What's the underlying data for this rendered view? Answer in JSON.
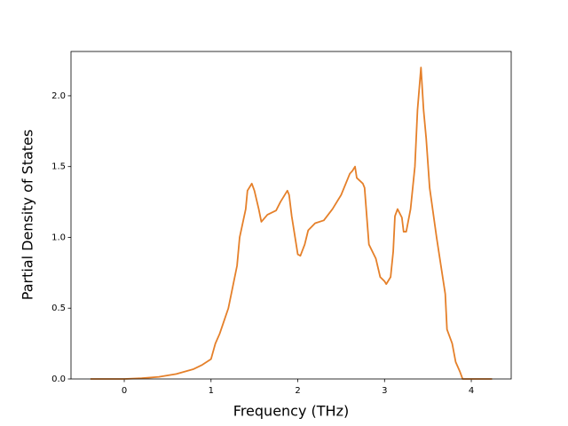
{
  "chart_data": {
    "type": "line",
    "xlabel": "Frequency (THz)",
    "ylabel": "Partial Density of States",
    "x": [
      -0.39,
      0.0,
      0.2,
      0.4,
      0.6,
      0.8,
      0.9,
      1.0,
      1.05,
      1.1,
      1.2,
      1.25,
      1.3,
      1.33,
      1.4,
      1.42,
      1.47,
      1.5,
      1.55,
      1.58,
      1.65,
      1.75,
      1.8,
      1.88,
      1.9,
      1.93,
      2.0,
      2.03,
      2.08,
      2.12,
      2.2,
      2.3,
      2.4,
      2.5,
      2.6,
      2.63,
      2.66,
      2.68,
      2.75,
      2.77,
      2.82,
      2.9,
      2.95,
      3.0,
      3.02,
      3.07,
      3.1,
      3.12,
      3.15,
      3.2,
      3.22,
      3.25,
      3.3,
      3.35,
      3.38,
      3.42,
      3.45,
      3.48,
      3.52,
      3.6,
      3.65,
      3.7,
      3.72,
      3.78,
      3.82,
      3.87,
      3.9,
      4.0,
      4.24
    ],
    "series": [
      {
        "color": "#e5802a",
        "values": [
          0,
          0,
          0.005,
          0.015,
          0.035,
          0.07,
          0.1,
          0.14,
          0.25,
          0.32,
          0.5,
          0.65,
          0.8,
          1.0,
          1.2,
          1.33,
          1.38,
          1.33,
          1.2,
          1.11,
          1.16,
          1.19,
          1.25,
          1.33,
          1.3,
          1.15,
          0.88,
          0.87,
          0.95,
          1.05,
          1.1,
          1.12,
          1.2,
          1.3,
          1.45,
          1.47,
          1.5,
          1.42,
          1.38,
          1.35,
          0.95,
          0.85,
          0.72,
          0.69,
          0.67,
          0.72,
          0.9,
          1.15,
          1.2,
          1.14,
          1.04,
          1.04,
          1.2,
          1.5,
          1.9,
          2.2,
          1.9,
          1.7,
          1.35,
          1.0,
          0.8,
          0.6,
          0.35,
          0.25,
          0.12,
          0.05,
          0,
          0,
          0
        ]
      }
    ],
    "xlim": [
      -0.614,
      4.46
    ],
    "xticks": [
      0,
      1,
      2,
      3,
      4
    ],
    "ylim": [
      0,
      2.313
    ],
    "yticks": [
      {
        "value": 0,
        "label": "0.0"
      },
      0.5,
      {
        "value": 1,
        "label": "1.0"
      },
      1.5,
      {
        "value": 2,
        "label": "2.0"
      }
    ]
  }
}
